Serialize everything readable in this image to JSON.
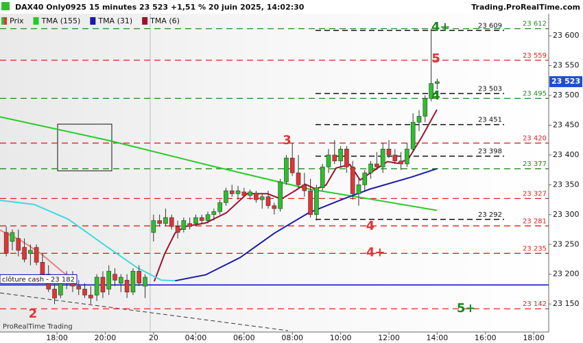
{
  "chart_data": {
    "type": "candlestick",
    "title": "DAX40 Only0925 15 minutes 23 523 +1,51 % 20 juin 2025, 14:02:30",
    "source": "Trading.ProRealTime.com",
    "footer": "ProRealTime Trading",
    "price_name": "Prix",
    "up_color": "#2cbf2c",
    "down_color": "#e03434",
    "xlim": [
      15.64,
      38.37
    ],
    "ylim": [
      23103,
      23637
    ],
    "xticks": [
      {
        "value": 18,
        "label": "18:00"
      },
      {
        "value": 20,
        "label": "20:00"
      },
      {
        "value": 22,
        "label": "20"
      },
      {
        "value": 23.75,
        "label": "04:00"
      },
      {
        "value": 25.75,
        "label": "06:00"
      },
      {
        "value": 27.75,
        "label": "08:00"
      },
      {
        "value": 29.75,
        "label": "10:00"
      },
      {
        "value": 31.75,
        "label": "12:00"
      },
      {
        "value": 33.75,
        "label": "14:00"
      },
      {
        "value": 35.75,
        "label": "16:00"
      },
      {
        "value": 37.75,
        "label": "18:00"
      }
    ],
    "yticks": [
      {
        "value": 23150,
        "label": "23 150"
      },
      {
        "value": 23200,
        "label": "23 200"
      },
      {
        "value": 23250,
        "label": "23 250"
      },
      {
        "value": 23300,
        "label": "23 300"
      },
      {
        "value": 23350,
        "label": "23 350"
      },
      {
        "value": 23400,
        "label": "23 400"
      },
      {
        "value": 23450,
        "label": "23 450"
      },
      {
        "value": 23500,
        "label": "23 500"
      },
      {
        "value": 23550,
        "label": "23 550"
      },
      {
        "value": 23600,
        "label": "23 600"
      }
    ],
    "last": {
      "value": 23523,
      "label": "23 523",
      "color": "#1f4fd0"
    },
    "candles": {
      "x": [
        15.9,
        16.15,
        16.4,
        16.65,
        16.9,
        17.15,
        17.4,
        17.65,
        17.9,
        18.15,
        18.4,
        18.65,
        18.9,
        19.15,
        19.4,
        19.65,
        19.9,
        20.15,
        20.4,
        20.65,
        20.9,
        21.15,
        21.4,
        21.65,
        22,
        22.25,
        22.5,
        22.75,
        23,
        23.25,
        23.5,
        23.75,
        24,
        24.25,
        24.5,
        24.75,
        25,
        25.25,
        25.5,
        25.75,
        26,
        26.25,
        26.5,
        26.75,
        27,
        27.25,
        27.5,
        27.75,
        28,
        28.25,
        28.5,
        28.75,
        29,
        29.25,
        29.5,
        29.75,
        30,
        30.25,
        30.5,
        30.75,
        31,
        31.25,
        31.5,
        31.75,
        32,
        32.25,
        32.5,
        32.75,
        33,
        33.25,
        33.5,
        33.75
      ],
      "open": [
        23270,
        23255,
        23260,
        23245,
        23235,
        23245,
        23220,
        23200,
        23175,
        23165,
        23195,
        23185,
        23180,
        23175,
        23165,
        23165,
        23195,
        23175,
        23200,
        23185,
        23190,
        23170,
        23205,
        23180,
        23270,
        23290,
        23285,
        23295,
        23280,
        23275,
        23285,
        23285,
        23295,
        23290,
        23300,
        23305,
        23320,
        23340,
        23335,
        23338,
        23332,
        23336,
        23325,
        23330,
        23315,
        23310,
        23355,
        23395,
        23370,
        23350,
        23340,
        23300,
        23345,
        23380,
        23400,
        23390,
        23410,
        23380,
        23335,
        23350,
        23370,
        23385,
        23380,
        23410,
        23400,
        23390,
        23385,
        23410,
        23455,
        23465,
        23495,
        23520
      ],
      "high": [
        23280,
        23275,
        23275,
        23260,
        23250,
        23250,
        23235,
        23215,
        23190,
        23200,
        23205,
        23205,
        23190,
        23185,
        23180,
        23200,
        23205,
        23215,
        23210,
        23200,
        23200,
        23210,
        23215,
        23200,
        23300,
        23300,
        23310,
        23300,
        23290,
        23295,
        23295,
        23300,
        23300,
        23305,
        23310,
        23325,
        23345,
        23350,
        23348,
        23345,
        23342,
        23340,
        23335,
        23340,
        23320,
        23360,
        23400,
        23420,
        23400,
        23370,
        23360,
        23350,
        23385,
        23410,
        23425,
        23415,
        23415,
        23390,
        23360,
        23375,
        23390,
        23405,
        23420,
        23425,
        23410,
        23405,
        23420,
        23470,
        23475,
        23500,
        23612,
        23528
      ],
      "low": [
        23230,
        23240,
        23230,
        23220,
        23215,
        23215,
        23195,
        23170,
        23150,
        23160,
        23175,
        23170,
        23165,
        23160,
        23150,
        23155,
        23160,
        23165,
        23180,
        23170,
        23160,
        23165,
        23180,
        23160,
        23255,
        23280,
        23280,
        23275,
        23260,
        23270,
        23275,
        23280,
        23285,
        23285,
        23290,
        23300,
        23315,
        23330,
        23325,
        23330,
        23325,
        23320,
        23310,
        23310,
        23300,
        23305,
        23350,
        23365,
        23345,
        23330,
        23295,
        23290,
        23340,
        23370,
        23385,
        23380,
        23370,
        23325,
        23315,
        23340,
        23360,
        23375,
        23370,
        23395,
        23385,
        23375,
        23380,
        23405,
        23440,
        23455,
        23490,
        23510
      ],
      "close": [
        23235,
        23270,
        23240,
        23225,
        23240,
        23220,
        23200,
        23175,
        23160,
        23195,
        23185,
        23180,
        23175,
        23165,
        23160,
        23195,
        23170,
        23205,
        23190,
        23195,
        23170,
        23205,
        23185,
        23195,
        23290,
        23285,
        23295,
        23280,
        23270,
        23290,
        23280,
        23295,
        23290,
        23300,
        23305,
        23320,
        23340,
        23335,
        23340,
        23332,
        23338,
        23325,
        23330,
        23315,
        23310,
        23355,
        23395,
        23370,
        23350,
        23340,
        23300,
        23345,
        23380,
        23400,
        23390,
        23410,
        23380,
        23335,
        23350,
        23370,
        23385,
        23380,
        23410,
        23400,
        23390,
        23385,
        23410,
        23455,
        23465,
        23495,
        23520,
        23523
      ]
    },
    "series": [
      {
        "name": "TMA (155)",
        "color": "#22cc22",
        "x": [
          15.64,
          20.19,
          24.16,
          28.43,
          30.98,
          33.74
        ],
        "values": [
          23464,
          23424,
          23384,
          23343,
          23326,
          23307
        ]
      },
      {
        "name": "TMA (31)",
        "color": "#1a1aaa",
        "x": [
          22.89,
          24.16,
          25.59,
          27.01,
          28.43,
          29.85,
          30.98,
          32.69,
          33.74
        ],
        "values": [
          23189,
          23199,
          23228,
          23269,
          23303,
          23326,
          23343,
          23363,
          23377
        ]
      },
      {
        "name": "TMA (6)",
        "color": "#a0102a",
        "x": [
          22.03,
          22.46,
          22.89,
          23.31,
          24.16,
          25.02,
          25.87,
          26.72,
          27.29,
          27.86,
          28.28,
          28.71,
          29.14,
          29.56,
          30.13,
          30.56,
          31.13,
          31.69,
          32.12,
          32.55,
          33.11,
          33.74
        ],
        "values": [
          23188,
          23234,
          23269,
          23280,
          23286,
          23303,
          23335,
          23335,
          23326,
          23340,
          23351,
          23343,
          23349,
          23378,
          23384,
          23358,
          23374,
          23389,
          23386,
          23393,
          23430,
          23476
        ]
      },
      {
        "color": "#40d8e0",
        "x": [
          15.64,
          17.06,
          18.48,
          19.9,
          21.32,
          22.32,
          22.89
        ],
        "values": [
          23324,
          23317,
          23292,
          23251,
          23211,
          23190,
          23189
        ]
      },
      {
        "color": "#f08080",
        "x": [
          15.64,
          16.49,
          17.35,
          18.2,
          18.77
        ],
        "values": [
          23274,
          23257,
          23234,
          23205,
          23186
        ]
      }
    ],
    "levels": [
      {
        "value": 23612,
        "label": "23 612",
        "color": "#1a8a1a"
      },
      {
        "value": 23559,
        "label": "23 559",
        "color": "#e02020"
      },
      {
        "value": 23495,
        "label": "23 495",
        "color": "#1a8a1a"
      },
      {
        "value": 23420,
        "label": "23 420",
        "color": "#e02020"
      },
      {
        "value": 23377,
        "label": "23 377",
        "color": "#1a8a1a"
      },
      {
        "value": 23327,
        "label": "23 327",
        "color": "#e02020"
      },
      {
        "value": 23281,
        "label": "23 281",
        "color": "#e02020"
      },
      {
        "value": 23235,
        "label": "23 235",
        "color": "#e02020"
      },
      {
        "value": 23142,
        "label": "23 142",
        "color": "#e02020"
      }
    ],
    "short_levels": [
      {
        "value": 23609,
        "label": "23 609"
      },
      {
        "value": 23503,
        "label": "23 503"
      },
      {
        "value": 23451,
        "label": "23 451"
      },
      {
        "value": 23398,
        "label": "23 398"
      },
      {
        "value": 23292,
        "label": "23 292"
      }
    ],
    "hline": {
      "value": 23182,
      "label": "clôture cash - 23 182",
      "color": "#0000cc"
    },
    "markers": [
      {
        "text": "4+",
        "color": "#1a8a1a",
        "x": 33.9,
        "y": 23614
      },
      {
        "text": "5",
        "color": "#e03434",
        "x": 33.7,
        "y": 23561
      },
      {
        "text": "4",
        "color": "#1a8a1a",
        "x": 33.7,
        "y": 23499
      },
      {
        "text": "3",
        "color": "#e03434",
        "x": 27.53,
        "y": 23424
      },
      {
        "text": "4",
        "color": "#e03434",
        "x": 30.98,
        "y": 23280
      },
      {
        "text": "4+",
        "color": "#e03434",
        "x": 31.2,
        "y": 23236
      },
      {
        "text": "5+",
        "color": "#1a8a1a",
        "x": 34.95,
        "y": 23142
      },
      {
        "text": "2",
        "color": "#e03434",
        "x": 17.0,
        "y": 23133
      }
    ]
  }
}
